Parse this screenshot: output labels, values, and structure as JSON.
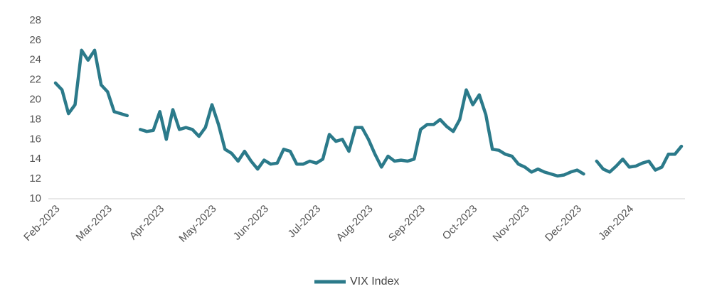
{
  "chart_data": {
    "type": "line",
    "categories": [
      "Feb-2023",
      null,
      null,
      null,
      null,
      null,
      null,
      null,
      "Mar-2023",
      null,
      null,
      null,
      null,
      null,
      null,
      null,
      "Apr-2023",
      null,
      null,
      null,
      null,
      null,
      null,
      null,
      "May-2023",
      null,
      null,
      null,
      null,
      null,
      null,
      null,
      "Jun-2023",
      null,
      null,
      null,
      null,
      null,
      null,
      null,
      "Jul-2023",
      null,
      null,
      null,
      null,
      null,
      null,
      null,
      "Aug-2023",
      null,
      null,
      null,
      null,
      null,
      null,
      null,
      "Sep-2023",
      null,
      null,
      null,
      null,
      null,
      null,
      null,
      "Oct-2023",
      null,
      null,
      null,
      null,
      null,
      null,
      null,
      "Nov-2023",
      null,
      null,
      null,
      null,
      null,
      null,
      null,
      "Dec-2023",
      null,
      null,
      null,
      null,
      null,
      null,
      null,
      "Jan-2024",
      null,
      null,
      null,
      null,
      null,
      null,
      null,
      null
    ],
    "series": [
      {
        "name": "VIX Index",
        "color": "#2b7a8a",
        "values": [
          21.7,
          21.0,
          18.6,
          19.5,
          25.0,
          24.0,
          25.0,
          21.5,
          20.8,
          18.8,
          18.6,
          18.4,
          null,
          17.0,
          16.8,
          16.9,
          18.8,
          16.0,
          19.0,
          17.0,
          17.2,
          17.0,
          16.3,
          17.2,
          19.5,
          17.5,
          15.0,
          14.6,
          13.8,
          14.8,
          13.8,
          13.0,
          13.9,
          13.5,
          13.6,
          15.0,
          14.8,
          13.5,
          13.5,
          13.8,
          13.6,
          14.0,
          16.5,
          15.8,
          16.0,
          14.8,
          17.2,
          17.2,
          16.0,
          14.5,
          13.2,
          14.3,
          13.8,
          13.9,
          13.8,
          14.0,
          17.0,
          17.5,
          17.5,
          18.0,
          17.3,
          16.8,
          18.0,
          21.0,
          19.5,
          20.5,
          18.5,
          15.0,
          14.9,
          14.5,
          14.3,
          13.5,
          13.2,
          12.7,
          13.0,
          12.7,
          12.5,
          12.3,
          12.4,
          12.7,
          12.9,
          12.5,
          null,
          13.8,
          13.0,
          12.7,
          13.3,
          14.0,
          13.2,
          13.3,
          13.6,
          13.8,
          12.9,
          13.2,
          14.5,
          14.5,
          15.3
        ]
      }
    ],
    "ylim": [
      10,
      28
    ],
    "yticks": [
      10,
      12,
      14,
      16,
      18,
      20,
      22,
      24,
      26,
      28
    ],
    "grid": false,
    "legend": "bottom"
  }
}
